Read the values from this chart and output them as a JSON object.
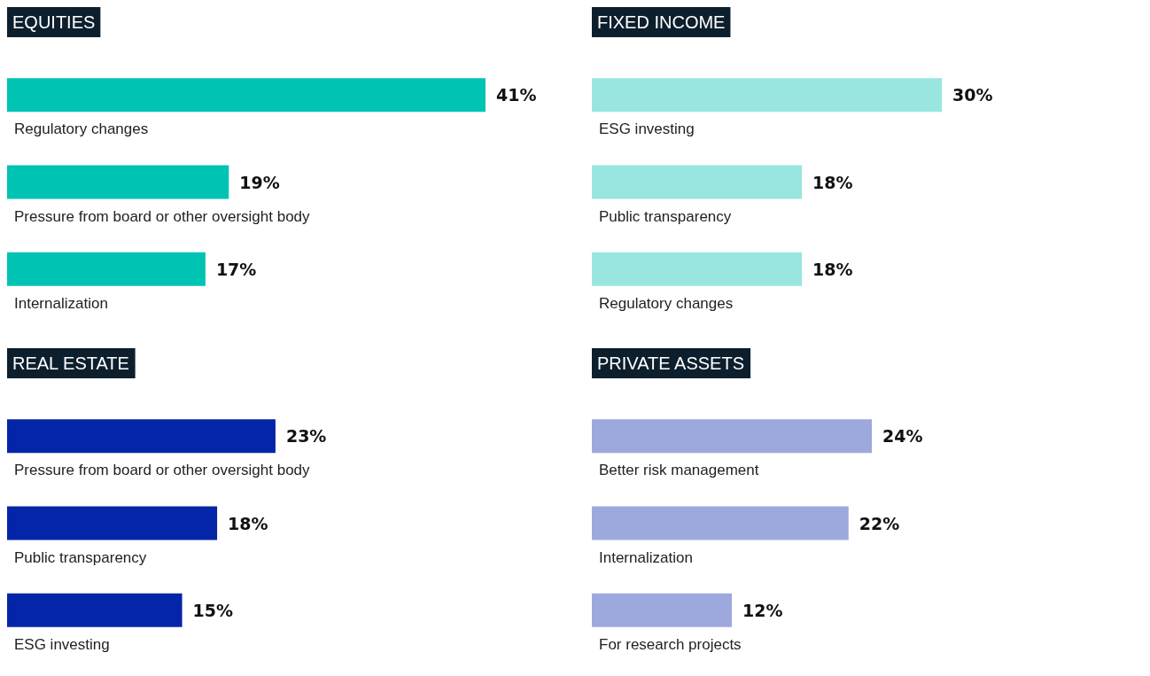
{
  "chart_data": [
    {
      "type": "bar",
      "orientation": "horizontal",
      "title": "EQUITIES",
      "categories": [
        "Regulatory changes",
        "Pressure from board or other oversight body",
        "Internalization"
      ],
      "values": [
        41,
        19,
        17
      ],
      "color": "#00c4b3",
      "value_labels": [
        "41%",
        "19%",
        "17%"
      ]
    },
    {
      "type": "bar",
      "orientation": "horizontal",
      "title": "FIXED INCOME",
      "categories": [
        "ESG investing",
        "Public transparency",
        "Regulatory changes"
      ],
      "values": [
        30,
        18,
        18
      ],
      "color": "#98e6df",
      "value_labels": [
        "30%",
        "18%",
        "18%"
      ]
    },
    {
      "type": "bar",
      "orientation": "horizontal",
      "title": "REAL ESTATE",
      "categories": [
        "Pressure from board or other oversight body",
        "Public transparency",
        "ESG investing"
      ],
      "values": [
        23,
        18,
        15
      ],
      "color": "#0525a8",
      "value_labels": [
        "23%",
        "18%",
        "15%"
      ]
    },
    {
      "type": "bar",
      "orientation": "horizontal",
      "title": "PRIVATE ASSETS",
      "categories": [
        "Better risk management",
        "Internalization",
        "For research projects"
      ],
      "values": [
        24,
        22,
        12
      ],
      "color": "#9da9dd",
      "value_labels": [
        "24%",
        "22%",
        "12%"
      ]
    }
  ]
}
